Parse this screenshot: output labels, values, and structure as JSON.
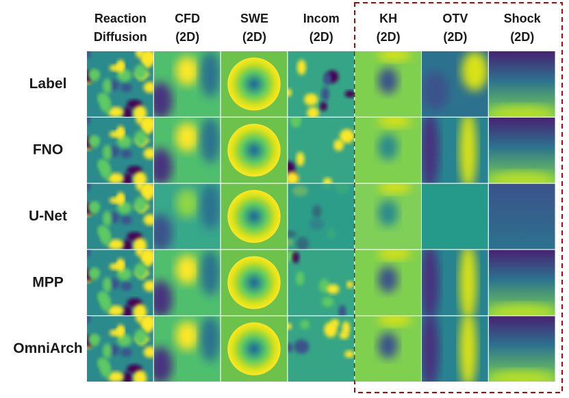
{
  "columns": [
    [
      "Reaction",
      "Diffusion"
    ],
    [
      "CFD",
      "(2D)"
    ],
    [
      "SWE",
      "(2D)"
    ],
    [
      "Incom",
      "(2D)"
    ],
    [
      "KH",
      "(2D)"
    ],
    [
      "OTV",
      "(2D)"
    ],
    [
      "Shock",
      "(2D)"
    ]
  ],
  "rows": [
    "Label",
    "FNO",
    "U-Net",
    "MPP",
    "OmniArch"
  ]
}
